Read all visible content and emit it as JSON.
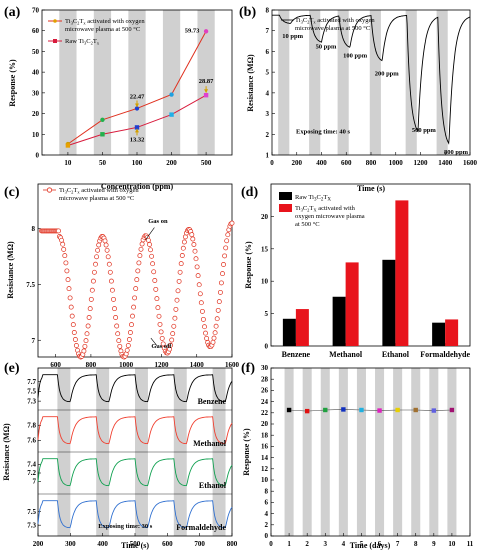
{
  "panels": {
    "a": {
      "label": "(a)"
    },
    "b": {
      "label": "(b)"
    },
    "c": {
      "label": "(c)"
    },
    "d": {
      "label": "(d)"
    },
    "e": {
      "label": "(e)"
    },
    "f": {
      "label": "(f)"
    }
  },
  "chart_data": [
    {
      "panel": "a",
      "type": "line",
      "xlabel": "Concentration (ppm)",
      "ylabel": "Response (%)",
      "categories": [
        "10",
        "50",
        "100",
        "200",
        "500"
      ],
      "ylim": [
        0,
        70
      ],
      "yticks": [
        0,
        10,
        20,
        30,
        40,
        50,
        60,
        70
      ],
      "series": [
        {
          "name": "Ti₃C₂Tₓ activated with oxygen microwave plasma at 500 °C",
          "values": [
            5.3,
            17.0,
            22.47,
            29.2,
            59.73
          ],
          "color": "#e0301e"
        },
        {
          "name": "Raw Ti₃C₂Tₓ",
          "values": [
            4.6,
            10.0,
            13.32,
            19.5,
            28.87
          ],
          "color": "#d81b3c"
        }
      ],
      "point_colors": [
        "#c8a000",
        "#22b14c",
        "#1f3fd0",
        "#1fa0e0",
        "#e040c0"
      ],
      "point_colors_raw": [
        "#e8a000",
        "#22b14c",
        "#2040d0",
        "#20b0e8",
        "#e040d0"
      ],
      "annotations": [
        "59.73",
        "28.87",
        "22.47",
        "13.32"
      ],
      "bands": [
        [
          20,
          40
        ],
        [
          60,
          80
        ],
        [
          100,
          120
        ],
        [
          140,
          160
        ],
        [
          180,
          200
        ]
      ]
    },
    {
      "panel": "b",
      "type": "line",
      "xlabel": "Time (s)",
      "ylabel": "Resistance (MΩ)",
      "xlim": [
        0,
        1600
      ],
      "ylim": [
        1,
        8
      ],
      "xticks": [
        0,
        200,
        400,
        600,
        800,
        1000,
        1200,
        1400,
        1600
      ],
      "yticks": [
        1,
        2,
        3,
        4,
        5,
        6,
        7,
        8
      ],
      "series": [
        {
          "name": "Ti₃C₂Tₓ activated with oxygen microwave plasma at 500 °C",
          "color": "#000000"
        }
      ],
      "annotations": [
        "10 ppm",
        "50 ppm",
        "100 ppm",
        "200 ppm",
        "500 ppm",
        "800 ppm",
        "Exposing time: 40 s"
      ],
      "bands": [
        [
          50,
          140
        ],
        [
          300,
          390
        ],
        [
          530,
          620
        ],
        [
          790,
          880
        ],
        [
          1080,
          1170
        ],
        [
          1330,
          1420
        ]
      ]
    },
    {
      "panel": "c",
      "type": "scatter",
      "xlabel": "Time (s)",
      "ylabel": "Resistance (MΩ)",
      "xlim": [
        500,
        1600
      ],
      "ylim": [
        6.85,
        8.4
      ],
      "xticks": [
        600,
        800,
        1000,
        1200,
        1400,
        1600
      ],
      "yticks": [
        7,
        7.5,
        8
      ],
      "series": [
        {
          "name": "Ti₃C₂Tₓ activated with oxygen microwave plasma at 500 °C",
          "color": "#e0301e"
        }
      ],
      "annotations": [
        "Gas on",
        "Gas off"
      ]
    },
    {
      "panel": "d",
      "type": "bar",
      "ylabel": "Response (%)",
      "categories": [
        "Benzene",
        "Methanol",
        "Ethanol",
        "Formaldehyde"
      ],
      "ylim": [
        0,
        25
      ],
      "yticks": [
        0,
        5,
        10,
        15,
        20
      ],
      "series": [
        {
          "name": "Raw Ti₃C₂Tₓ",
          "values": [
            4.2,
            7.6,
            13.3,
            3.6
          ],
          "color": "#000000"
        },
        {
          "name": "Ti₃C₂Tₓ activated with oxygen microwave plasma at 500 °C",
          "values": [
            5.7,
            12.9,
            22.47,
            4.1
          ],
          "color": "#e8141c"
        }
      ]
    },
    {
      "panel": "e",
      "type": "line",
      "xlabel": "Time (s)",
      "ylabel": "Resistance (MΩ)",
      "xlim": [
        200,
        800
      ],
      "xticks": [
        200,
        300,
        400,
        500,
        600,
        700,
        800
      ],
      "series": [
        {
          "name": "Benzene",
          "color": "#000000",
          "ylim": [
            7.2,
            7.9
          ],
          "yticks": [
            7.3,
            7.5,
            7.7
          ]
        },
        {
          "name": "Methanol",
          "color": "#f04030",
          "ylim": [
            7.5,
            7.95
          ],
          "yticks": [
            7.6,
            7.8
          ]
        },
        {
          "name": "Ethanol",
          "color": "#10a050",
          "ylim": [
            6.8,
            7.6
          ],
          "yticks": [
            7.0,
            7.2,
            7.4
          ]
        },
        {
          "name": "Formaldehyde",
          "color": "#3070d0",
          "ylim": [
            7.2,
            7.7
          ],
          "yticks": [
            7.3,
            7.5
          ]
        }
      ],
      "annotations": [
        "Exposing time: 30 s"
      ],
      "bands": [
        [
          260,
          300
        ],
        [
          380,
          420
        ],
        [
          500,
          540
        ],
        [
          620,
          660
        ],
        [
          740,
          780
        ]
      ]
    },
    {
      "panel": "f",
      "type": "scatter",
      "xlabel": "Time (days)",
      "ylabel": "Response (%)",
      "xlim": [
        0,
        11
      ],
      "ylim": [
        0,
        30
      ],
      "xticks": [
        0,
        1,
        2,
        3,
        4,
        5,
        6,
        7,
        8,
        9,
        10,
        11
      ],
      "yticks": [
        0,
        2,
        4,
        6,
        8,
        10,
        12,
        14,
        16,
        18,
        20,
        22,
        24,
        26,
        28,
        30
      ],
      "x": [
        1,
        2,
        3,
        4,
        5,
        6,
        7,
        8,
        9,
        10
      ],
      "values": [
        22.5,
        22.3,
        22.5,
        22.6,
        22.5,
        22.4,
        22.5,
        22.5,
        22.4,
        22.5
      ],
      "point_colors": [
        "#000000",
        "#e01010",
        "#20a040",
        "#1030c0",
        "#20b0e0",
        "#e020c0",
        "#e8d000",
        "#a07030",
        "#6060e0",
        "#a01070"
      ]
    }
  ]
}
